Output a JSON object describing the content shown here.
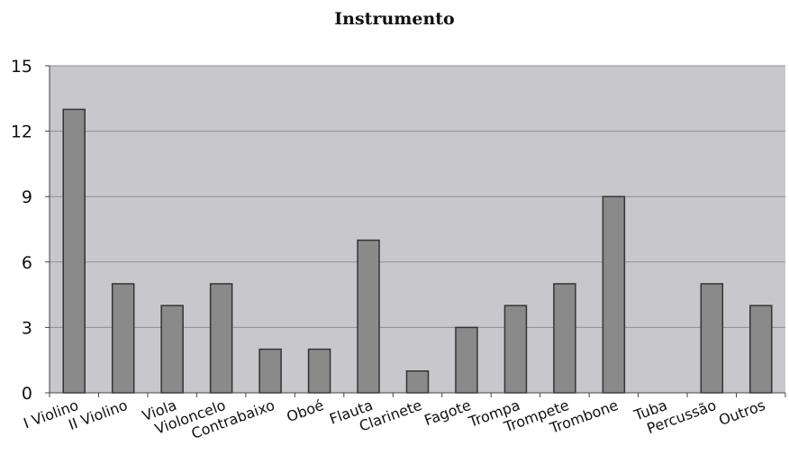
{
  "chart_data": {
    "type": "bar",
    "title": "Instrumento",
    "xlabel": "",
    "ylabel": "",
    "categories": [
      "I Violino",
      "II Violino",
      "Viola",
      "Violoncelo",
      "Contrabaixo",
      "Oboé",
      "Flauta",
      "Clarinete",
      "Fagote",
      "Trompa",
      "Trompete",
      "Trombone",
      "Tuba",
      "Percussão",
      "Outros"
    ],
    "values": [
      13,
      5,
      4,
      5,
      2,
      2,
      7,
      1,
      3,
      4,
      5,
      9,
      0,
      5,
      4
    ],
    "ylim": [
      0,
      15
    ],
    "yticks": [
      0,
      3,
      6,
      9,
      12,
      15
    ],
    "grid": true,
    "colors": {
      "plot_bg": "#c8c8cc",
      "bar": "#8a8a8a",
      "bar_stroke": "#333333",
      "grid": "#8e8e92"
    }
  }
}
